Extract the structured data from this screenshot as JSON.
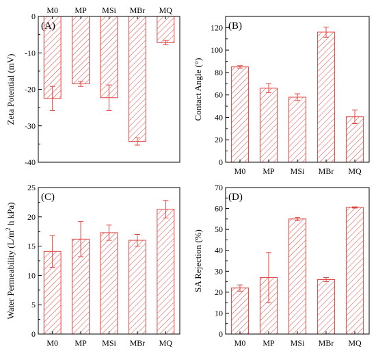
{
  "colors": {
    "bar": "#e0433f",
    "axis": "#000000",
    "background": "#ffffff"
  },
  "chart_data": [
    {
      "panel": "(A)",
      "type": "bar",
      "categories": [
        "M0",
        "MP",
        "MSi",
        "MBr",
        "MQ"
      ],
      "values": [
        -22.5,
        -18.5,
        -22.3,
        -34.3,
        -7.2
      ],
      "errors": [
        3.3,
        0.7,
        3.5,
        1.0,
        0.6
      ],
      "ylabel": "Zeta Potential (mV)",
      "ylim": [
        -40,
        0
      ],
      "yticks": [
        0,
        -10,
        -20,
        -30,
        -40
      ],
      "category_axis": "top"
    },
    {
      "panel": "(B)",
      "type": "bar",
      "categories": [
        "M0",
        "MP",
        "MSi",
        "MBr",
        "MQ"
      ],
      "values": [
        85,
        66,
        58,
        116,
        40.5
      ],
      "errors": [
        1.2,
        4,
        3,
        4.5,
        6
      ],
      "ylabel": "Contact Angle (°)",
      "ylim": [
        0,
        130
      ],
      "yticks": [
        0,
        20,
        40,
        60,
        80,
        100,
        120
      ],
      "category_axis": "bottom"
    },
    {
      "panel": "(C)",
      "type": "bar",
      "categories": [
        "M0",
        "MP",
        "MSi",
        "MBr",
        "MQ"
      ],
      "values": [
        14.1,
        16.2,
        17.3,
        16.0,
        21.3
      ],
      "errors": [
        2.7,
        3.0,
        1.3,
        1.0,
        1.5
      ],
      "ylabel": "Water Permeability (L/m",
      "ylabel_sup": "2",
      "ylabel_tail": " h kPa)",
      "ylim": [
        0,
        25
      ],
      "yticks": [
        0,
        5,
        10,
        15,
        20,
        25
      ],
      "category_axis": "bottom"
    },
    {
      "panel": "(D)",
      "type": "bar",
      "categories": [
        "M0",
        "MP",
        "MSi",
        "MBr",
        "MQ"
      ],
      "values": [
        22,
        27,
        55,
        26,
        60.5
      ],
      "errors": [
        1.5,
        12,
        0.8,
        1.0,
        0.3
      ],
      "ylabel": "SA Rejection (%)",
      "ylim": [
        0,
        70
      ],
      "yticks": [
        0,
        10,
        20,
        30,
        40,
        50,
        60,
        70
      ],
      "category_axis": "bottom"
    }
  ]
}
